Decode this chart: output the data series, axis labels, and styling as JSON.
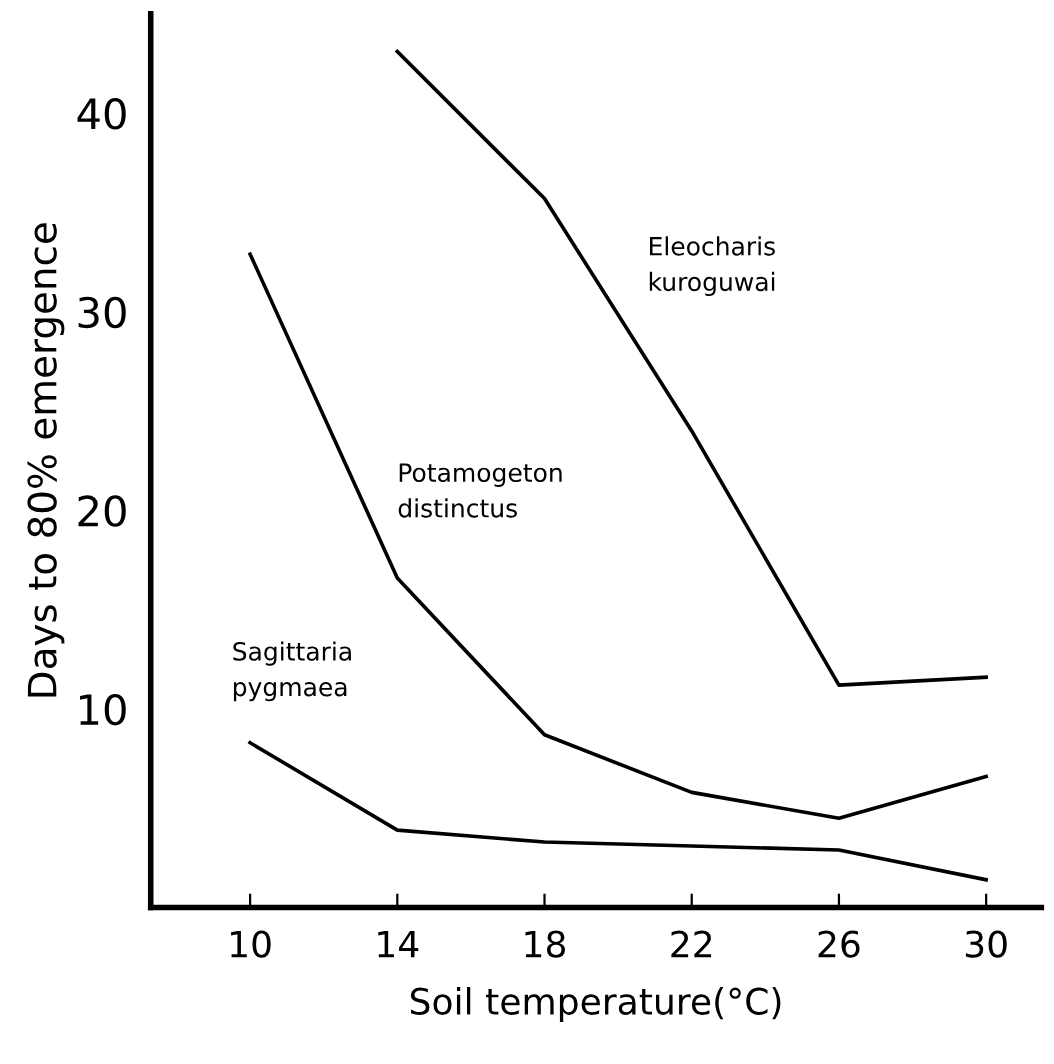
{
  "chart_data": {
    "type": "line",
    "xlabel": "Soil temperature(°C)",
    "ylabel": "Days to 80% emergence",
    "x": [
      10,
      14,
      18,
      22,
      26,
      30
    ],
    "series": [
      {
        "name": "Eleocharis kuroguwai",
        "color": "#000000",
        "values": [
          null,
          43.1,
          35.7,
          24.0,
          11.2,
          11.6
        ]
      },
      {
        "name": "Potamogeton distinctus",
        "color": "#000000",
        "values": [
          32.9,
          16.6,
          8.7,
          5.8,
          4.5,
          6.6
        ]
      },
      {
        "name": "Sagittaria pygmaea",
        "color": "#000000",
        "values": [
          8.3,
          3.9,
          3.3,
          3.1,
          2.9,
          1.4
        ]
      }
    ],
    "xlim": [
      7.3,
      31.5
    ],
    "ylim": [
      0,
      45
    ],
    "xticks": [
      10,
      14,
      18,
      22,
      26,
      30
    ],
    "yticks": [
      10,
      20,
      30,
      40
    ],
    "grid": false,
    "legend": false,
    "marker": "none",
    "line_style": "solid"
  }
}
